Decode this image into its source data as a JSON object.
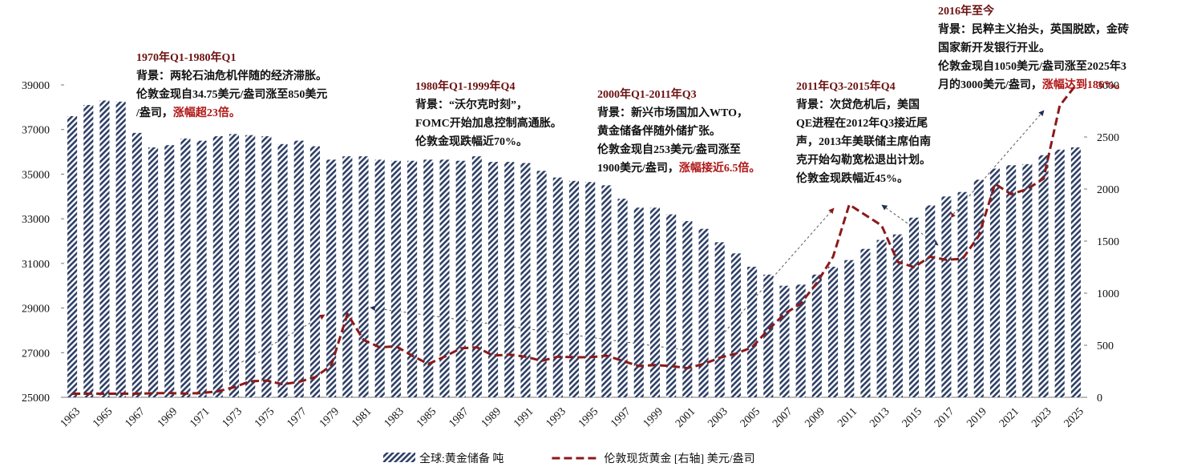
{
  "chart_data": {
    "type": "bar",
    "categories": [
      "1963",
      null,
      "1965",
      null,
      "1967",
      null,
      "1969",
      null,
      "1971",
      null,
      "1973",
      null,
      "1975",
      null,
      "1977",
      null,
      "1979",
      null,
      "1981",
      null,
      "1983",
      null,
      "1985",
      null,
      "1987",
      null,
      "1989",
      null,
      "1991",
      null,
      "1993",
      null,
      "1995",
      null,
      "1997",
      null,
      "1999",
      null,
      "2001",
      null,
      "2003",
      null,
      "2005",
      null,
      "2007",
      null,
      "2009",
      null,
      "2011",
      null,
      "2013",
      null,
      "2015",
      null,
      "2017",
      null,
      "2019",
      null,
      "2021",
      null,
      "2023",
      null,
      "2025"
    ],
    "series": [
      {
        "name": "全球:黄金储备 吨",
        "type": "bar",
        "color": "#2e3f66",
        "values": [
          37600,
          38100,
          38300,
          38250,
          36850,
          36200,
          36300,
          36600,
          36500,
          36700,
          36800,
          36750,
          36700,
          36350,
          36500,
          36250,
          35650,
          35800,
          35800,
          35650,
          35600,
          35600,
          35650,
          35650,
          35600,
          35800,
          35550,
          35550,
          35500,
          35150,
          34850,
          34700,
          34650,
          34500,
          33900,
          33500,
          33500,
          33200,
          32900,
          32550,
          31950,
          31450,
          30850,
          30500,
          30000,
          30050,
          30500,
          30850,
          31150,
          31650,
          32050,
          32300,
          33050,
          33600,
          34000,
          34200,
          34750,
          35250,
          35400,
          35450,
          35850,
          36100,
          36200
        ]
      },
      {
        "name": "伦敦现货黄金 [右轴] 美元/盎司",
        "type": "line",
        "axis": "y2",
        "color": "#8b1a1a",
        "values": [
          35,
          35,
          35,
          35,
          35,
          39,
          41,
          36,
          41,
          58,
          97,
          154,
          161,
          125,
          148,
          193,
          306,
          800,
          550,
          480,
          490,
          400,
          320,
          390,
          470,
          480,
          400,
          410,
          390,
          350,
          390,
          385,
          385,
          400,
          350,
          300,
          310,
          300,
          280,
          320,
          380,
          420,
          480,
          650,
          800,
          900,
          1100,
          1350,
          1850,
          1750,
          1650,
          1300,
          1250,
          1350,
          1320,
          1330,
          1550,
          2050,
          1950,
          2000,
          2100,
          2800,
          3000
        ]
      }
    ],
    "ylim": [
      25000,
      39000
    ],
    "yticks": [
      25000,
      27000,
      29000,
      31000,
      33000,
      35000,
      37000,
      39000
    ],
    "y2lim": [
      0,
      3000
    ],
    "y2ticks": [
      0,
      500,
      1000,
      1500,
      2000,
      2500,
      3000
    ],
    "grid": false,
    "legend": "bottom",
    "annotations": [
      {
        "title": "1970年Q1-1980年Q1",
        "lines": [
          "背景：两轮石油危机伴随的经济滞胀。",
          "伦敦金现自34.75美元/盎司涨至850美元",
          "/盎司，"
        ],
        "highlight": "涨幅超23倍。"
      },
      {
        "title": "1980年Q1-1999年Q4",
        "lines": [
          "背景：“沃尔克时刻”，",
          "FOMC开始加息控制高通胀。",
          "伦敦金现跌幅近70%。"
        ]
      },
      {
        "title": "2000年Q1-2011年Q3",
        "lines": [
          "背景：新兴市场国加入WTO，",
          "黄金储备伴随外储扩张。",
          "伦敦金现自253美元/盎司涨至",
          "1900美元/盎司，"
        ],
        "highlight": "涨幅接近6.5倍。"
      },
      {
        "title": "2011年Q3-2015年Q4",
        "lines": [
          "背景：次贷危机后，美国",
          "QE进程在2012年Q3接近尾",
          "声，2013年美联储主席伯南",
          "克开始勾勒宽松退出计划。",
          "伦敦金现跌幅近45%。"
        ]
      },
      {
        "title": "2016年至今",
        "lines": [
          "背景：民粹主义抬头，英国脱欧，金砖",
          "国家新开发银行开业。",
          "伦敦金现自1050美元/盎司涨至2025年3",
          "月的3000美元/盎司，"
        ],
        "highlight": "涨幅达到186%。"
      }
    ]
  }
}
